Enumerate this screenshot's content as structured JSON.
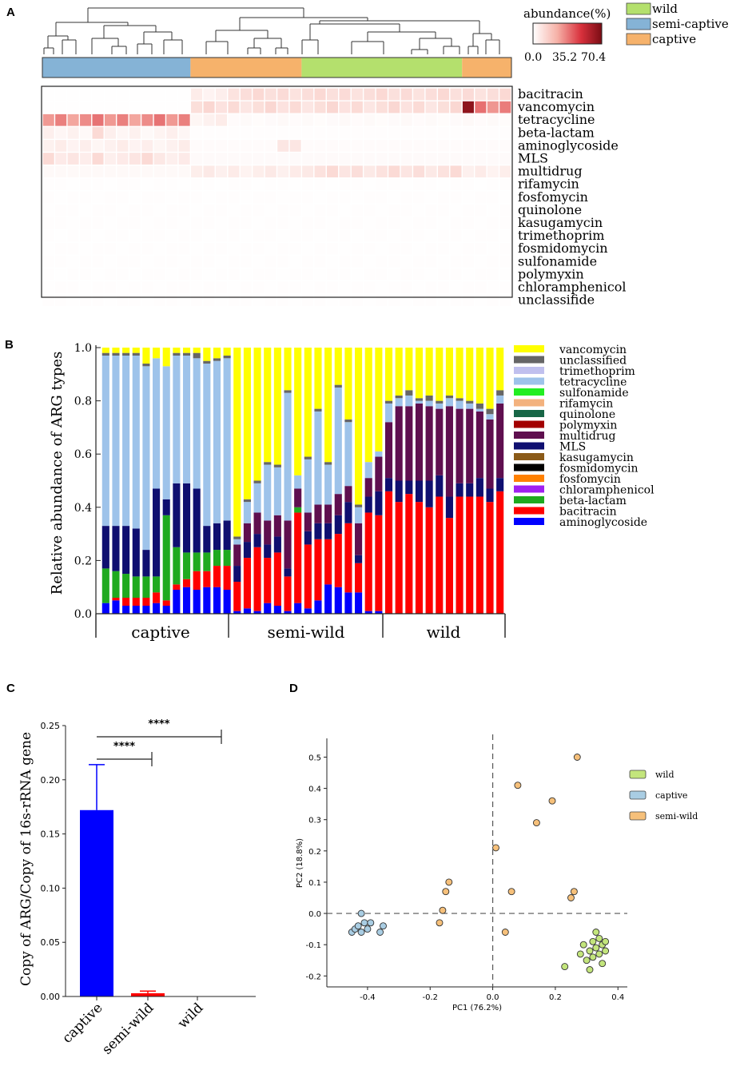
{
  "panels": {
    "a": "A",
    "b": "B",
    "c": "C",
    "d": "D"
  },
  "chart_data": [
    {
      "panel": "A",
      "type": "heatmap",
      "colorbar": {
        "title": "abundance(%)",
        "ticks": [
          "0.0",
          "35.2",
          "70.4"
        ],
        "min": 0,
        "max": 70.4,
        "low_color": "#ffffff",
        "high_color": "#7a0c14"
      },
      "groups_legend": [
        {
          "name": "wild",
          "color": "#b4e06d"
        },
        {
          "name": "semi-captive",
          "color": "#85b3d6"
        },
        {
          "name": "captive",
          "color": "#f6b26b"
        }
      ],
      "group_bar": [
        {
          "group": "semi-captive",
          "count": 12,
          "color": "#85b3d6"
        },
        {
          "group": "captive",
          "count": 9,
          "color": "#f6b26b"
        },
        {
          "group": "wild",
          "count": 13,
          "color": "#b4e06d"
        },
        {
          "group": "captive",
          "count": 4,
          "color": "#f6b26b"
        }
      ],
      "rows": [
        "bacitracin",
        "vancomycin",
        "tetracycline",
        "beta-lactam",
        "aminoglycoside",
        "MLS",
        "multidrug",
        "rifamycin",
        "fosfomycin",
        "quinolone",
        "kasugamycin",
        "trimethoprim",
        "fosmidomycin",
        "sulfonamide",
        "polymyxin",
        "chloramphenicol",
        "unclassifide"
      ],
      "n_columns": 38
    },
    {
      "panel": "B",
      "type": "bar",
      "stacked": true,
      "ylabel": "Relative abundance of ARG types",
      "yticks": [
        "0.0",
        "0.2",
        "0.4",
        "0.6",
        "0.8",
        "1.0"
      ],
      "ylim": [
        0,
        1
      ],
      "groups": [
        {
          "name": "captive",
          "count": 13
        },
        {
          "name": "semi-wild",
          "count": 15
        },
        {
          "name": "wild",
          "count": 12
        }
      ],
      "legend": [
        {
          "name": "vancomycin",
          "color": "#ffff00"
        },
        {
          "name": "unclassified",
          "color": "#666666"
        },
        {
          "name": "trimethoprim",
          "color": "#c0c0ee"
        },
        {
          "name": "tetracycline",
          "color": "#9ec3ea"
        },
        {
          "name": "sulfonamide",
          "color": "#22ee22"
        },
        {
          "name": "rifamycin",
          "color": "#f3b27e"
        },
        {
          "name": "quinolone",
          "color": "#176646"
        },
        {
          "name": "polymyxin",
          "color": "#a30000"
        },
        {
          "name": "multidrug",
          "color": "#5f0f4f"
        },
        {
          "name": "MLS",
          "color": "#0f0f70"
        },
        {
          "name": "kasugamycin",
          "color": "#8a5a18"
        },
        {
          "name": "fosmidomycin",
          "color": "#000000"
        },
        {
          "name": "fosfomycin",
          "color": "#ff8000"
        },
        {
          "name": "chloramphenicol",
          "color": "#a020f0"
        },
        {
          "name": "beta-lactam",
          "color": "#1faa1f"
        },
        {
          "name": "bacitracin",
          "color": "#ff0000"
        },
        {
          "name": "aminoglycoside",
          "color": "#0000ff"
        }
      ],
      "series_order": [
        "aminoglycoside",
        "bacitracin",
        "beta-lactam",
        "MLS",
        "multidrug",
        "tetracycline",
        "unclassified",
        "vancomycin"
      ],
      "bars": [
        [
          0.04,
          0.0,
          0.13,
          0.16,
          0.0,
          0.64,
          0.01,
          0.02
        ],
        [
          0.05,
          0.01,
          0.1,
          0.17,
          0.0,
          0.64,
          0.01,
          0.02
        ],
        [
          0.03,
          0.03,
          0.09,
          0.18,
          0.0,
          0.64,
          0.01,
          0.02
        ],
        [
          0.03,
          0.03,
          0.08,
          0.18,
          0.0,
          0.65,
          0.01,
          0.02
        ],
        [
          0.03,
          0.03,
          0.08,
          0.1,
          0.0,
          0.69,
          0.01,
          0.06
        ],
        [
          0.04,
          0.04,
          0.06,
          0.33,
          0.0,
          0.49,
          0.0,
          0.04
        ],
        [
          0.03,
          0.02,
          0.32,
          0.06,
          0.0,
          0.5,
          0.0,
          0.07
        ],
        [
          0.09,
          0.02,
          0.14,
          0.24,
          0.0,
          0.48,
          0.01,
          0.02
        ],
        [
          0.1,
          0.03,
          0.1,
          0.26,
          0.0,
          0.48,
          0.01,
          0.02
        ],
        [
          0.09,
          0.07,
          0.07,
          0.24,
          0.0,
          0.49,
          0.02,
          0.02
        ],
        [
          0.1,
          0.06,
          0.07,
          0.1,
          0.0,
          0.61,
          0.01,
          0.05
        ],
        [
          0.1,
          0.08,
          0.06,
          0.1,
          0.0,
          0.61,
          0.01,
          0.04
        ],
        [
          0.09,
          0.09,
          0.06,
          0.11,
          0.0,
          0.61,
          0.01,
          0.03
        ],
        [
          0.01,
          0.11,
          0.0,
          0.06,
          0.08,
          0.02,
          0.01,
          0.71
        ],
        [
          0.02,
          0.19,
          0.0,
          0.06,
          0.07,
          0.08,
          0.01,
          0.57
        ],
        [
          0.01,
          0.24,
          0.0,
          0.05,
          0.08,
          0.11,
          0.01,
          0.5
        ],
        [
          0.04,
          0.17,
          0.0,
          0.05,
          0.09,
          0.21,
          0.01,
          0.43
        ],
        [
          0.03,
          0.2,
          0.0,
          0.06,
          0.08,
          0.18,
          0.01,
          0.44
        ],
        [
          0.01,
          0.13,
          0.0,
          0.03,
          0.18,
          0.48,
          0.01,
          0.16
        ],
        [
          0.04,
          0.34,
          0.02,
          0.0,
          0.07,
          0.05,
          0.0,
          0.48
        ],
        [
          0.02,
          0.24,
          0.0,
          0.05,
          0.07,
          0.2,
          0.01,
          0.41
        ],
        [
          0.05,
          0.23,
          0.0,
          0.06,
          0.07,
          0.35,
          0.01,
          0.23
        ],
        [
          0.11,
          0.17,
          0.0,
          0.06,
          0.07,
          0.15,
          0.01,
          0.43
        ],
        [
          0.1,
          0.2,
          0.0,
          0.07,
          0.08,
          0.4,
          0.01,
          0.14
        ],
        [
          0.08,
          0.26,
          0.0,
          0.08,
          0.06,
          0.24,
          0.01,
          0.27
        ],
        [
          0.08,
          0.11,
          0.0,
          0.03,
          0.12,
          0.06,
          0.01,
          0.59
        ],
        [
          0.01,
          0.37,
          0.0,
          0.06,
          0.07,
          0.06,
          0.0,
          0.43
        ],
        [
          0.01,
          0.36,
          0.0,
          0.09,
          0.13,
          0.02,
          0.0,
          0.39
        ],
        [
          0.0,
          0.46,
          0.0,
          0.05,
          0.21,
          0.07,
          0.01,
          0.2
        ],
        [
          0.0,
          0.42,
          0.0,
          0.08,
          0.28,
          0.03,
          0.01,
          0.18
        ],
        [
          0.0,
          0.45,
          0.0,
          0.05,
          0.28,
          0.04,
          0.02,
          0.16
        ],
        [
          0.0,
          0.42,
          0.0,
          0.08,
          0.29,
          0.01,
          0.01,
          0.19
        ],
        [
          0.0,
          0.4,
          0.0,
          0.1,
          0.28,
          0.02,
          0.02,
          0.18
        ],
        [
          0.0,
          0.44,
          0.0,
          0.08,
          0.25,
          0.02,
          0.01,
          0.2
        ],
        [
          0.0,
          0.36,
          0.0,
          0.08,
          0.34,
          0.03,
          0.01,
          0.18
        ],
        [
          0.0,
          0.44,
          0.0,
          0.05,
          0.28,
          0.03,
          0.01,
          0.19
        ],
        [
          0.0,
          0.44,
          0.0,
          0.05,
          0.28,
          0.02,
          0.01,
          0.2
        ],
        [
          0.0,
          0.44,
          0.0,
          0.07,
          0.25,
          0.01,
          0.02,
          0.21
        ],
        [
          0.0,
          0.42,
          0.0,
          0.05,
          0.26,
          0.02,
          0.02,
          0.23
        ],
        [
          0.0,
          0.46,
          0.0,
          0.05,
          0.28,
          0.03,
          0.02,
          0.16
        ]
      ]
    },
    {
      "panel": "C",
      "type": "bar",
      "ylabel": "Copy of ARG/Copy of 16s-rRNA gene",
      "categories": [
        "captive",
        "semi-wild",
        "wild"
      ],
      "values": [
        0.172,
        0.003,
        0.0
      ],
      "errors": [
        0.042,
        0.002,
        0.0
      ],
      "colors": [
        "#0000ff",
        "#ff0000",
        "#0000ff"
      ],
      "ylim": [
        0,
        0.25
      ],
      "yticks": [
        "0.00",
        "0.05",
        "0.10",
        "0.15",
        "0.20",
        "0.25"
      ],
      "significance": [
        {
          "from": "captive",
          "to": "semi-wild",
          "label": "****"
        },
        {
          "from": "captive",
          "to": "wild",
          "label": "****"
        }
      ]
    },
    {
      "panel": "D",
      "type": "scatter",
      "xlabel": "PC1 (76.2%)",
      "ylabel": "PC2 (18.8%)",
      "xlim": [
        -0.53,
        0.43
      ],
      "ylim": [
        -0.235,
        0.56
      ],
      "xticks": [
        "-0.4",
        "-0.2",
        "0.0",
        "0.2",
        "0.4"
      ],
      "yticks": [
        "-0.2",
        "-0.1",
        "0.0",
        "0.1",
        "0.2",
        "0.3",
        "0.4",
        "0.5"
      ],
      "series": [
        {
          "name": "wild",
          "color": "#c3e57c",
          "points": [
            [
              0.23,
              -0.17
            ],
            [
              0.28,
              -0.13
            ],
            [
              0.29,
              -0.1
            ],
            [
              0.3,
              -0.15
            ],
            [
              0.31,
              -0.12
            ],
            [
              0.31,
              -0.18
            ],
            [
              0.32,
              -0.09
            ],
            [
              0.32,
              -0.14
            ],
            [
              0.33,
              -0.06
            ],
            [
              0.33,
              -0.11
            ],
            [
              0.34,
              -0.08
            ],
            [
              0.34,
              -0.13
            ],
            [
              0.35,
              -0.1
            ],
            [
              0.35,
              -0.16
            ],
            [
              0.36,
              -0.12
            ],
            [
              0.36,
              -0.09
            ]
          ]
        },
        {
          "name": "captive",
          "color": "#a9cde3",
          "points": [
            [
              -0.45,
              -0.06
            ],
            [
              -0.44,
              -0.05
            ],
            [
              -0.43,
              -0.04
            ],
            [
              -0.42,
              -0.06
            ],
            [
              -0.42,
              0.0
            ],
            [
              -0.41,
              -0.03
            ],
            [
              -0.4,
              -0.05
            ],
            [
              -0.39,
              -0.03
            ],
            [
              -0.36,
              -0.06
            ],
            [
              -0.35,
              -0.04
            ]
          ]
        },
        {
          "name": "semi-wild",
          "color": "#f6c07a",
          "points": [
            [
              0.27,
              0.5
            ],
            [
              0.08,
              0.41
            ],
            [
              0.19,
              0.36
            ],
            [
              0.14,
              0.29
            ],
            [
              0.01,
              0.21
            ],
            [
              -0.14,
              0.1
            ],
            [
              -0.15,
              0.07
            ],
            [
              0.06,
              0.07
            ],
            [
              0.26,
              0.07
            ],
            [
              0.25,
              0.05
            ],
            [
              -0.16,
              0.01
            ],
            [
              -0.17,
              -0.03
            ],
            [
              0.04,
              -0.06
            ]
          ]
        }
      ]
    }
  ]
}
